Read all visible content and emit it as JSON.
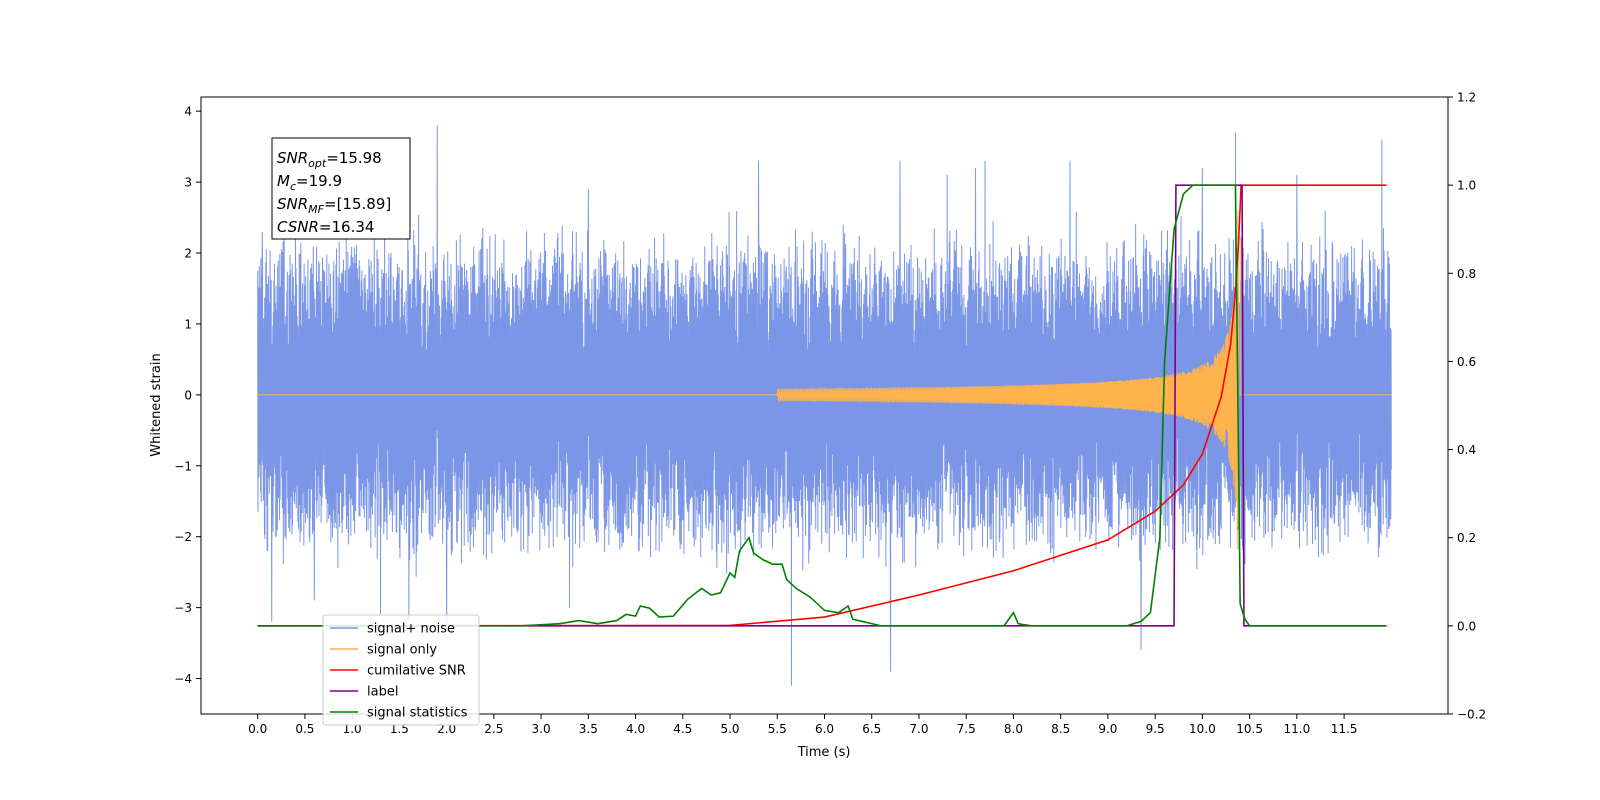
{
  "chart_data": {
    "type": "line",
    "xlabel": "Time (s)",
    "ylabel": "Whitened strain",
    "xlim": [
      -0.6,
      12.6
    ],
    "ylim": [
      -4.5,
      4.2
    ],
    "y2lim": [
      -0.2,
      1.2
    ],
    "x_ticks": [
      "0.0",
      "0.5",
      "1.0",
      "1.5",
      "2.0",
      "2.5",
      "3.0",
      "3.5",
      "4.0",
      "4.5",
      "5.0",
      "5.5",
      "6.0",
      "6.5",
      "7.0",
      "7.5",
      "8.0",
      "8.5",
      "9.0",
      "9.5",
      "10.0",
      "10.5",
      "11.0",
      "11.5"
    ],
    "y_ticks": [
      "4",
      "3",
      "2",
      "1",
      "0",
      "−1",
      "−2",
      "−3",
      "−4"
    ],
    "y2_ticks": [
      "1.2",
      "1.0",
      "0.8",
      "0.6",
      "0.4",
      "0.2",
      "0.0",
      "−0.2"
    ],
    "grid": false,
    "legend_position": "lower-left",
    "annotation": [
      {
        "sym": "SNR",
        "sub": "opt",
        "val": "=15.98"
      },
      {
        "sym": "M",
        "sub": "c",
        "val": "=19.9"
      },
      {
        "sym": "SNR",
        "sub": "MF",
        "val": "=[15.89]"
      },
      {
        "sym": "CSNR",
        "sub": "",
        "val": "=16.34"
      }
    ],
    "series": [
      {
        "name": "signal+ noise",
        "color": "#7b96e6",
        "axis": "left",
        "noise_envelope": {
          "x": [
            0,
            12
          ],
          "typical_amplitude": 1.6
        },
        "spikes": [
          [
            0.05,
            2.3
          ],
          [
            0.1,
            -2.2
          ],
          [
            0.15,
            -3.2
          ],
          [
            0.4,
            2.6
          ],
          [
            0.6,
            -2.9
          ],
          [
            1.3,
            -3.1
          ],
          [
            1.6,
            -3.2
          ],
          [
            1.9,
            3.8
          ],
          [
            2.0,
            -3.3
          ],
          [
            3.3,
            -3.0
          ],
          [
            3.5,
            2.9
          ],
          [
            5.3,
            3.3
          ],
          [
            5.65,
            -4.1
          ],
          [
            6.2,
            2.4
          ],
          [
            6.7,
            -3.9
          ],
          [
            6.8,
            3.3
          ],
          [
            7.3,
            3.1
          ],
          [
            7.6,
            3.2
          ],
          [
            7.7,
            3.3
          ],
          [
            8.6,
            3.3
          ],
          [
            9.35,
            -3.6
          ],
          [
            10.0,
            3.2
          ],
          [
            10.35,
            3.7
          ],
          [
            11.0,
            3.1
          ],
          [
            11.3,
            2.6
          ],
          [
            11.9,
            3.6
          ]
        ]
      },
      {
        "name": "signal only",
        "color": "#ffb34d",
        "axis": "left",
        "chirp": {
          "start": 5.5,
          "end": 10.4,
          "end_amplitude": 3.0
        }
      },
      {
        "name": "cumilative SNR",
        "color": "#ff0000",
        "axis": "right",
        "x": [
          0,
          5.0,
          6.0,
          7.0,
          8.0,
          9.0,
          9.5,
          9.8,
          10.0,
          10.2,
          10.3,
          10.35,
          10.38,
          10.4,
          10.41,
          11.95
        ],
        "y": [
          0,
          0.001,
          0.02,
          0.07,
          0.125,
          0.195,
          0.26,
          0.32,
          0.39,
          0.52,
          0.64,
          0.76,
          0.86,
          0.95,
          1.0,
          1.0
        ]
      },
      {
        "name": "label",
        "color": "#800080",
        "axis": "right",
        "x": [
          0,
          9.7,
          9.72,
          10.42,
          10.44,
          11.95
        ],
        "y": [
          0,
          0,
          1,
          1,
          0,
          0
        ]
      },
      {
        "name": "signal statistics",
        "color": "#008000",
        "axis": "right",
        "x": [
          0,
          2.8,
          3.2,
          3.4,
          3.6,
          3.8,
          3.9,
          4.0,
          4.05,
          4.15,
          4.25,
          4.4,
          4.55,
          4.7,
          4.8,
          4.9,
          5.0,
          5.05,
          5.1,
          5.2,
          5.25,
          5.35,
          5.45,
          5.55,
          5.6,
          5.7,
          5.85,
          6.0,
          6.15,
          6.25,
          6.3,
          6.4,
          6.5,
          6.6,
          7.9,
          8.0,
          8.05,
          8.1,
          8.2,
          8.5,
          9.2,
          9.35,
          9.45,
          9.55,
          9.6,
          9.7,
          9.8,
          9.9,
          10.0,
          10.1,
          10.35,
          10.4,
          10.45,
          10.5,
          11.95
        ],
        "y": [
          0,
          0,
          0.005,
          0.012,
          0.005,
          0.012,
          0.026,
          0.022,
          0.045,
          0.04,
          0.02,
          0.022,
          0.06,
          0.085,
          0.07,
          0.075,
          0.12,
          0.11,
          0.17,
          0.2,
          0.165,
          0.15,
          0.14,
          0.14,
          0.105,
          0.085,
          0.065,
          0.035,
          0.03,
          0.045,
          0.015,
          0.01,
          0.005,
          0,
          0,
          0.03,
          0.005,
          0.003,
          0,
          0,
          0,
          0.01,
          0.03,
          0.2,
          0.6,
          0.9,
          0.98,
          1.0,
          1.0,
          1.0,
          1.0,
          0.05,
          0.015,
          0,
          0
        ]
      }
    ],
    "legend": [
      {
        "name": "signal+ noise",
        "color": "#7b96e6"
      },
      {
        "name": "signal only",
        "color": "#ffb34d"
      },
      {
        "name": "cumilative SNR",
        "color": "#ff0000"
      },
      {
        "name": "label",
        "color": "#800080"
      },
      {
        "name": "signal statistics",
        "color": "#008000"
      }
    ]
  }
}
